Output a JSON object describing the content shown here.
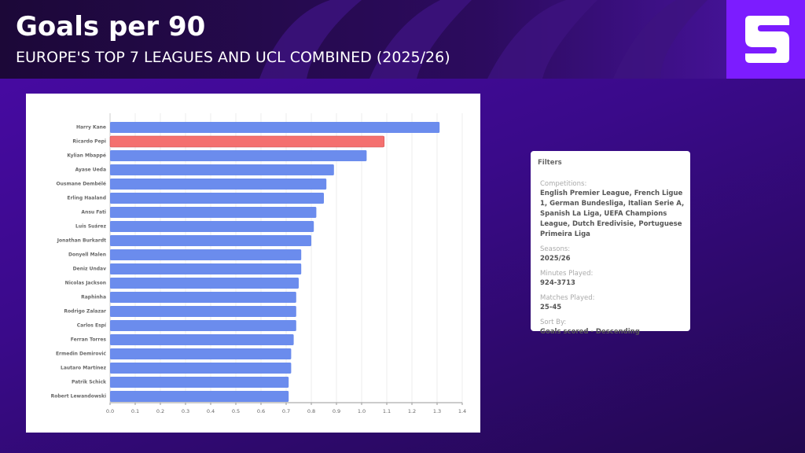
{
  "header": {
    "title": "Goals per 90",
    "subtitle": "EUROPE'S TOP 7 LEAGUES AND UCL COMBINED (2025/26)"
  },
  "chart_data": {
    "type": "bar",
    "orientation": "horizontal",
    "categories": [
      "Harry Kane",
      "Ricardo Pepi",
      "Kylian Mbappé",
      "Ayase Ueda",
      "Ousmane Dembélé",
      "Erling Haaland",
      "Ansu Fati",
      "Luis Suárez",
      "Jonathan Burkardt",
      "Donyell Malen",
      "Deniz Undav",
      "Nicolas Jackson",
      "Raphinha",
      "Rodrigo Zalazar",
      "Carlos Espí",
      "Ferran Torres",
      "Ermedin Demirović",
      "Lautaro Martínez",
      "Patrik Schick",
      "Robert Lewandowski"
    ],
    "values": [
      1.31,
      1.09,
      1.02,
      0.89,
      0.86,
      0.85,
      0.82,
      0.81,
      0.8,
      0.76,
      0.76,
      0.75,
      0.74,
      0.74,
      0.74,
      0.73,
      0.72,
      0.72,
      0.71,
      0.71
    ],
    "color": "#6b8ced",
    "highlight_color": "#f4706f",
    "highlight_index": 1,
    "xlim": [
      0,
      1.4
    ],
    "xticks": [
      {
        "value": 0,
        "label": "0.0"
      },
      0.1,
      0.2,
      0.3,
      0.4,
      0.5,
      0.6,
      0.7,
      0.8,
      0.9,
      {
        "value": 1,
        "label": "1.0"
      },
      1.1,
      1.2,
      1.3,
      1.4
    ],
    "grid": true
  },
  "filters": {
    "title": "Filters",
    "items": [
      {
        "label": "Competitions:",
        "value": "English Premier League, French Ligue 1, German Bundesliga, Italian Serie A, Spanish La Liga, UEFA Champions League, Dutch Eredivisie, Portuguese Primeira Liga"
      },
      {
        "label": "Seasons:",
        "value": "2025/26"
      },
      {
        "label": "Minutes Played:",
        "value": "924-3713"
      },
      {
        "label": "Matches Played:",
        "value": "25-45"
      },
      {
        "label": "Sort By:",
        "value": "Goals scored - Descending"
      }
    ]
  }
}
